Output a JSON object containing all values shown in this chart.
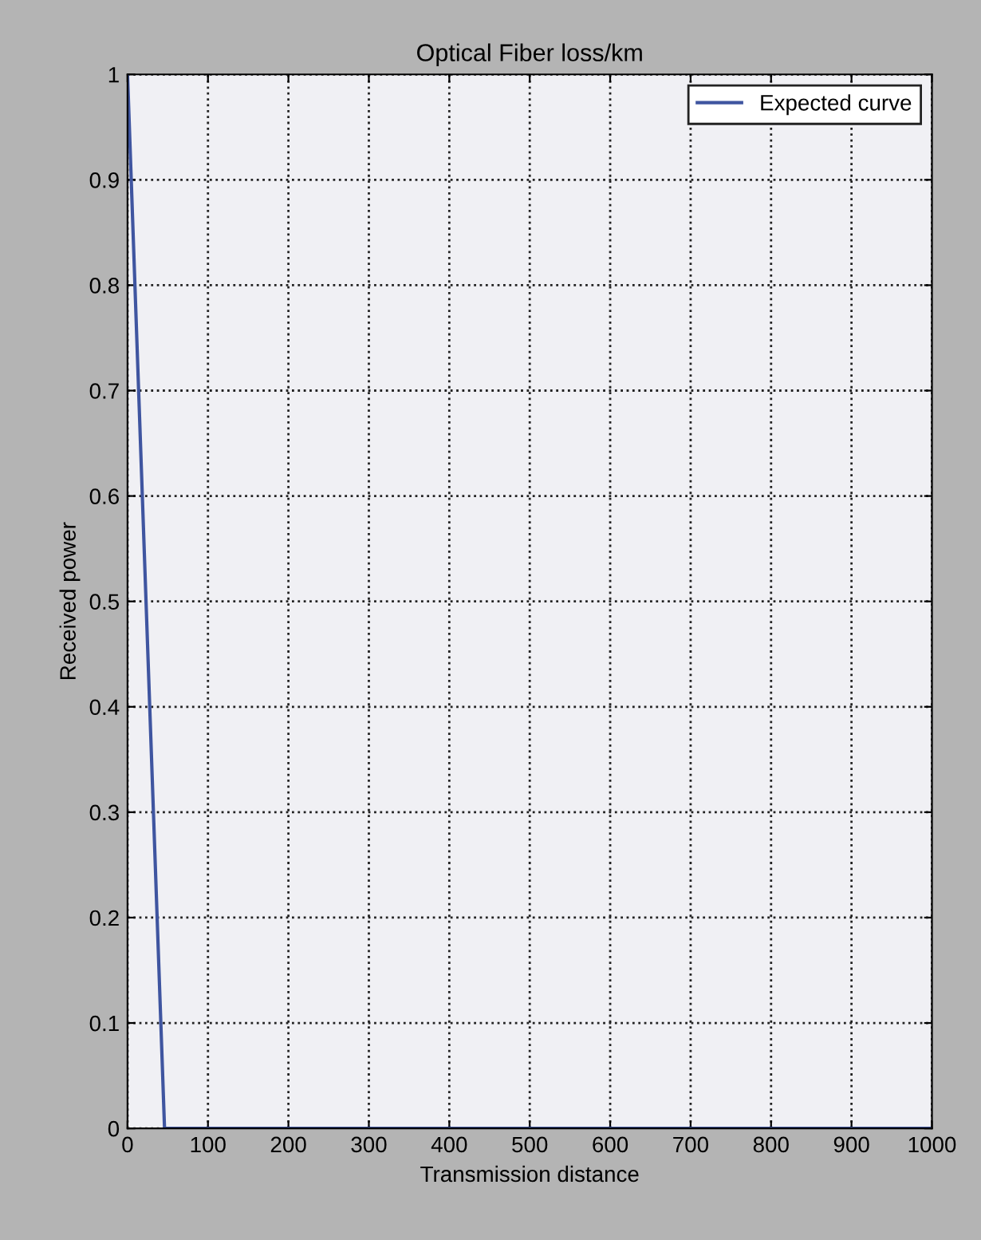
{
  "chart_data": {
    "type": "line",
    "title": "Optical Fiber loss/km",
    "xlabel": "Transmission distance",
    "ylabel": "Received power",
    "x": [
      0,
      46,
      1000
    ],
    "series": [
      {
        "name": "Expected curve",
        "color": "#3f55a0",
        "values": [
          1,
          0,
          0
        ]
      }
    ],
    "xlim": [
      0,
      1000
    ],
    "xticks": [
      0,
      100,
      200,
      300,
      400,
      500,
      600,
      700,
      800,
      900,
      1000
    ],
    "ylim": [
      0,
      1
    ],
    "yticks": [
      0,
      0.1,
      0.2,
      0.3,
      0.4,
      0.5,
      0.6,
      0.7,
      0.8,
      0.9,
      1
    ],
    "grid": true,
    "line_style": "solid",
    "legend": "top right"
  }
}
